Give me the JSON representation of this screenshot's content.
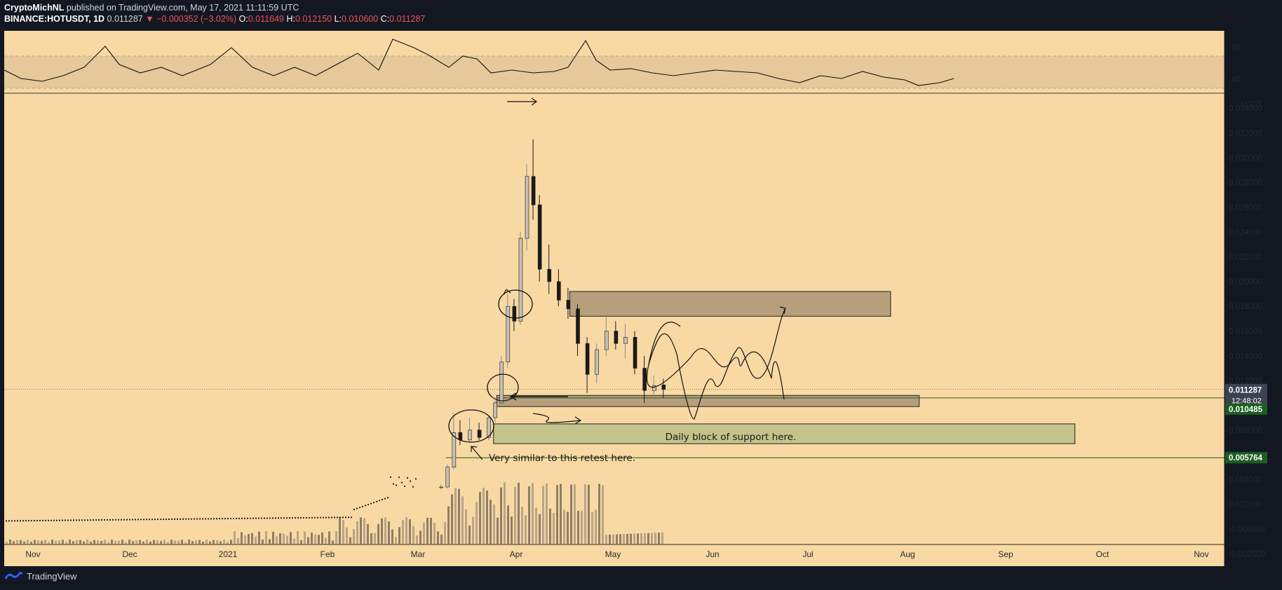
{
  "header": {
    "author": "CryptoMichNL",
    "published": "published on TradingView.com, May 17, 2021 11:11:59 UTC",
    "symbol": "BINANCE:HOTUSDT, 1D",
    "last": "0.011287",
    "change": "−0.000352 (−3.02%)",
    "o_label": "O:",
    "o": "0.011649",
    "h_label": "H:",
    "h": "0.012150",
    "l_label": "L:",
    "l": "0.010600",
    "c_label": "C:",
    "c": "0.011287"
  },
  "footer": {
    "brand": "TradingView"
  },
  "colors": {
    "background": "#131722",
    "panel": "#f9d9a3",
    "rsi_band": "#e6c89a",
    "candle_up": "#c8c0b4",
    "candle_down": "#1a1a1a",
    "zone_brown": "#b89f7c",
    "zone_green": "#c2c48a",
    "badge_green": "#1b5e20",
    "badge_dark": "#3b4252"
  },
  "chart_data": {
    "type": "candlestick",
    "symbol": "BINANCE:HOTUSDT",
    "interval": "1D",
    "currency": "USDT",
    "x_ticks": [
      "Nov",
      "Dec",
      "2021",
      "Feb",
      "Mar",
      "Apr",
      "May",
      "Jun",
      "Jul",
      "Aug",
      "Sep",
      "Oct",
      "Nov"
    ],
    "y_ticks": [
      "0.034000",
      "0.032000",
      "0.030000",
      "0.028000",
      "0.026000",
      "0.024000",
      "0.022000",
      "0.020000",
      "0.018000",
      "0.016000",
      "0.014000",
      "0.012000",
      "0.010000",
      "0.008000",
      "0.006000",
      "0.004000",
      "0.002000",
      "-0.000000",
      "-0.002000"
    ],
    "rsi_ticks": [
      "80",
      "40"
    ],
    "price_badges": [
      {
        "label": "0.011287",
        "sub": "12:48:02",
        "value": 0.011287
      },
      {
        "label": "0.010485",
        "value": 0.010485
      },
      {
        "label": "0.005764",
        "value": 0.005764
      }
    ],
    "zones": [
      {
        "from": "Apr 18",
        "to": "Jul 28",
        "low": 0.0172,
        "high": 0.0192,
        "color": "brown"
      },
      {
        "from": "Mar 26",
        "to": "Aug 06",
        "low": 0.0099,
        "high": 0.0108,
        "color": "brown"
      },
      {
        "from": "Mar 25",
        "to": "Sep 24",
        "low": 0.0069,
        "high": 0.0085,
        "color": "green"
      }
    ],
    "annotations": [
      "Daily block of support here.",
      "Very similar to this retest here."
    ],
    "ohlc_daily": [
      [
        "Mar 08",
        0.0034,
        0.0036,
        0.0032,
        0.0034
      ],
      [
        "Mar 10",
        0.0034,
        0.0052,
        0.0033,
        0.005
      ],
      [
        "Mar 12",
        0.005,
        0.0094,
        0.0048,
        0.0078
      ],
      [
        "Mar 14",
        0.0078,
        0.0088,
        0.0068,
        0.0072
      ],
      [
        "Mar 17",
        0.0072,
        0.009,
        0.007,
        0.008
      ],
      [
        "Mar 20",
        0.008,
        0.0086,
        0.0072,
        0.0074
      ],
      [
        "Mar 23",
        0.0074,
        0.0092,
        0.0072,
        0.009
      ],
      [
        "Mar 25",
        0.009,
        0.0104,
        0.0086,
        0.0102
      ],
      [
        "Mar 27",
        0.0102,
        0.014,
        0.01,
        0.0135
      ],
      [
        "Mar 29",
        0.0135,
        0.019,
        0.013,
        0.018
      ],
      [
        "Mar 31",
        0.018,
        0.0186,
        0.016,
        0.0168
      ],
      [
        "Apr 02",
        0.0168,
        0.024,
        0.0165,
        0.0235
      ],
      [
        "Apr 04",
        0.0235,
        0.0295,
        0.0225,
        0.0285
      ],
      [
        "Apr 06",
        0.0285,
        0.0315,
        0.025,
        0.0262
      ],
      [
        "Apr 08",
        0.0262,
        0.027,
        0.02,
        0.021
      ],
      [
        "Apr 11",
        0.021,
        0.023,
        0.019,
        0.02
      ],
      [
        "Apr 14",
        0.02,
        0.021,
        0.018,
        0.0185
      ],
      [
        "Apr 17",
        0.0185,
        0.0195,
        0.017,
        0.0178
      ],
      [
        "Apr 20",
        0.0178,
        0.0182,
        0.014,
        0.015
      ],
      [
        "Apr 23",
        0.015,
        0.0155,
        0.011,
        0.0125
      ],
      [
        "Apr 26",
        0.0125,
        0.015,
        0.0118,
        0.0145
      ],
      [
        "Apr 29",
        0.0145,
        0.0172,
        0.014,
        0.016
      ],
      [
        "May 02",
        0.016,
        0.0168,
        0.0145,
        0.015
      ],
      [
        "May 05",
        0.015,
        0.0166,
        0.0138,
        0.0155
      ],
      [
        "May 08",
        0.0155,
        0.016,
        0.0125,
        0.013
      ],
      [
        "May 11",
        0.013,
        0.014,
        0.0102,
        0.0112
      ],
      [
        "May 14",
        0.0112,
        0.0124,
        0.0105,
        0.0116
      ],
      [
        "May 17",
        0.011649,
        0.01215,
        0.0106,
        0.011287
      ]
    ]
  }
}
